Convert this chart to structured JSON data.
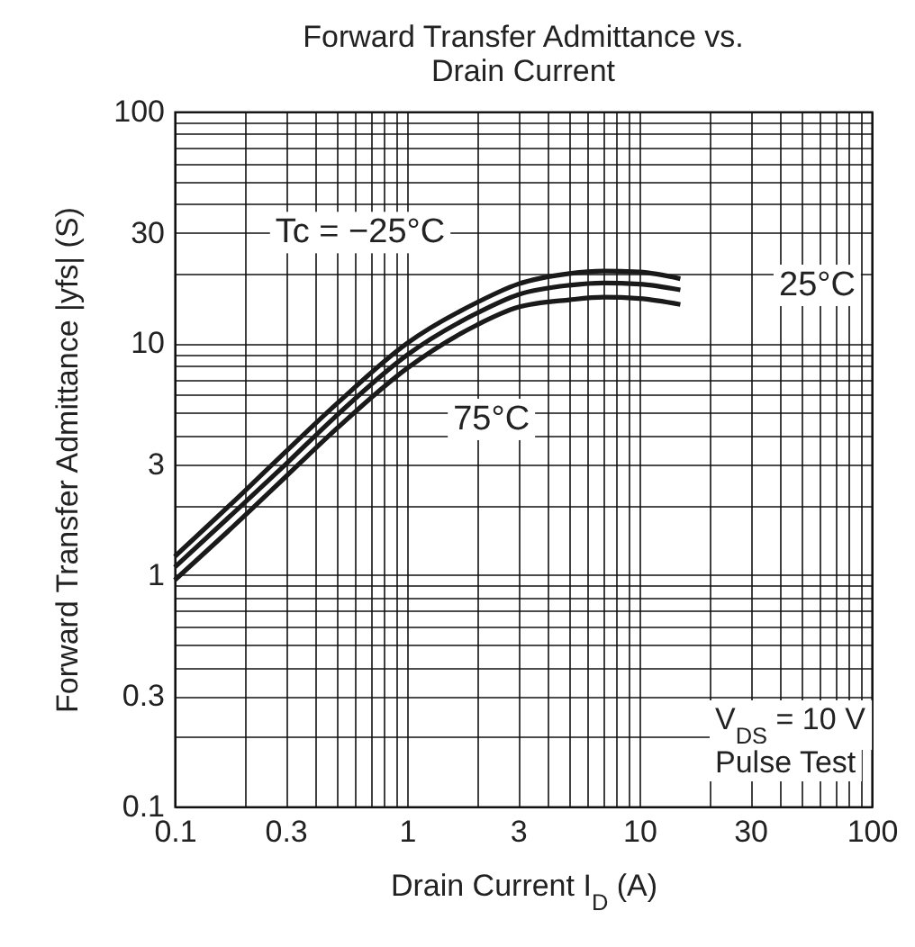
{
  "chart_data": {
    "type": "line",
    "title": "Forward Transfer Admittance vs.\nDrain Current",
    "xlabel": "Drain Current   I$_{D}$   (A)",
    "ylabel": "Forward Transfer Admittance   |yfs|   (S)",
    "x": [
      0.1,
      0.2,
      0.3,
      0.5,
      1,
      2,
      3,
      5,
      7,
      10,
      15
    ],
    "series": [
      {
        "name": "Tc = −25°C",
        "color": "#1a1a1a",
        "values": [
          1.2,
          2.3,
          3.4,
          5.5,
          10,
          15,
          18,
          20,
          20.5,
          20.3,
          19
        ]
      },
      {
        "name": "25°C",
        "color": "#1a1a1a",
        "values": [
          1.08,
          2.05,
          3.0,
          4.9,
          8.9,
          13.5,
          16.2,
          17.8,
          18.2,
          18,
          17
        ]
      },
      {
        "name": "75°C",
        "color": "#1a1a1a",
        "values": [
          0.95,
          1.8,
          2.65,
          4.3,
          7.8,
          12,
          14.3,
          15.4,
          15.8,
          15.6,
          14.7
        ]
      }
    ],
    "annotations": [
      "V$_{DS}$ = 10 V",
      "Pulse Test"
    ],
    "log": "xy",
    "grid": true,
    "legend": false,
    "marker": "none",
    "line_style": "solid",
    "xlim": [
      0.1,
      100
    ],
    "ylim": [
      0.1,
      100
    ],
    "xticks": [
      0.1,
      {
        "value": 0.2,
        "label": null
      },
      0.3,
      {
        "value": 0.4,
        "label": null
      },
      {
        "value": 0.5,
        "label": null
      },
      {
        "value": 0.6,
        "label": null
      },
      {
        "value": 0.7,
        "label": null
      },
      {
        "value": 0.8,
        "label": null
      },
      {
        "value": 0.9,
        "label": null
      },
      1,
      {
        "value": 2,
        "label": null
      },
      3,
      {
        "value": 4,
        "label": null
      },
      {
        "value": 5,
        "label": null
      },
      {
        "value": 6,
        "label": null
      },
      {
        "value": 7,
        "label": null
      },
      {
        "value": 8,
        "label": null
      },
      {
        "value": 9,
        "label": null
      },
      10,
      {
        "value": 20,
        "label": null
      },
      30,
      {
        "value": 40,
        "label": null
      },
      {
        "value": 50,
        "label": null
      },
      {
        "value": 60,
        "label": null
      },
      {
        "value": 70,
        "label": null
      },
      {
        "value": 80,
        "label": null
      },
      {
        "value": 90,
        "label": null
      },
      100
    ],
    "yticks": [
      0.1,
      {
        "value": 0.2,
        "label": null
      },
      0.3,
      {
        "value": 0.4,
        "label": null
      },
      {
        "value": 0.5,
        "label": null
      },
      {
        "value": 0.6,
        "label": null
      },
      {
        "value": 0.7,
        "label": null
      },
      {
        "value": 0.8,
        "label": null
      },
      {
        "value": 0.9,
        "label": null
      },
      1,
      {
        "value": 2,
        "label": null
      },
      3,
      {
        "value": 4,
        "label": null
      },
      {
        "value": 5,
        "label": null
      },
      {
        "value": 6,
        "label": null
      },
      {
        "value": 7,
        "label": null
      },
      {
        "value": 8,
        "label": null
      },
      {
        "value": 9,
        "label": null
      },
      10,
      {
        "value": 20,
        "label": null
      },
      30,
      {
        "value": 40,
        "label": null
      },
      {
        "value": 50,
        "label": null
      },
      {
        "value": 60,
        "label": null
      },
      {
        "value": 70,
        "label": null
      },
      {
        "value": 80,
        "label": null
      },
      {
        "value": 90,
        "label": null
      },
      100
    ]
  }
}
